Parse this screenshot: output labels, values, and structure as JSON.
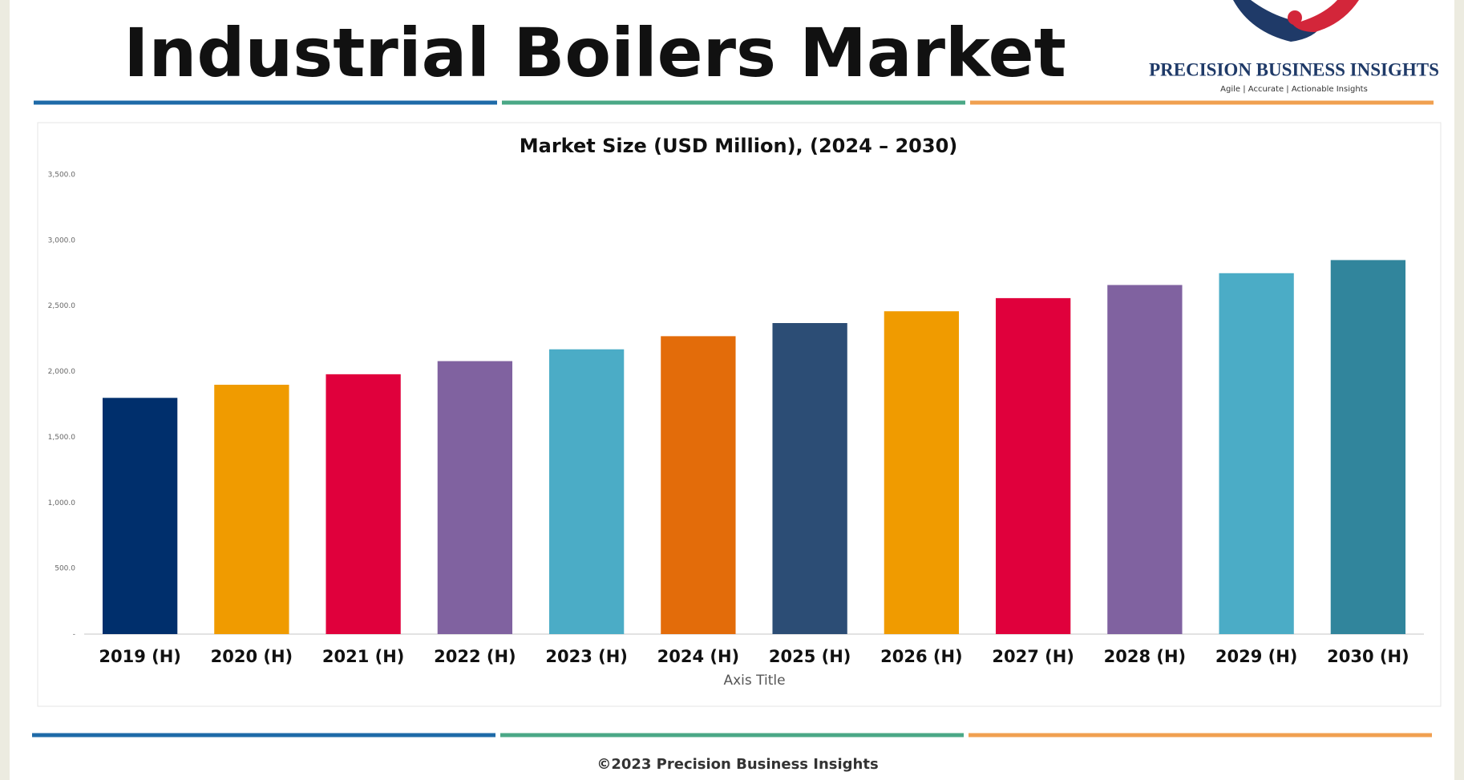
{
  "header": {
    "title": "Industrial Boilers Market",
    "brand": "PRECISION BUSINESS INSIGHTS",
    "tagline": "Agile | Accurate | Actionable Insights"
  },
  "chart_data": {
    "type": "bar",
    "title": "Market Size (USD Million), (2024 – 2030)",
    "x_label": "Axis Title",
    "categories": [
      "2019 (H)",
      "2020 (H)",
      "2021 (H)",
      "2022 (H)",
      "2023 (H)",
      "2024 (H)",
      "2025 (H)",
      "2026 (H)",
      "2027 (H)",
      "2028 (H)",
      "2029 (H)",
      "2030 (H)"
    ],
    "values": [
      1800,
      1900,
      1980,
      2080,
      2170,
      2270,
      2370,
      2460,
      2560,
      2660,
      2750,
      2850
    ],
    "colors": [
      "#002f6c",
      "#f09b00",
      "#e0003c",
      "#8062a0",
      "#4bacc6",
      "#e36c0a",
      "#2c4d75",
      "#f09b00",
      "#e0003c",
      "#8062a0",
      "#4bacc6",
      "#31859c"
    ],
    "ylim": [
      0,
      3500
    ],
    "yticks": [
      {
        "value": 0,
        "label": "-"
      },
      {
        "value": 500,
        "label": "500.0"
      },
      {
        "value": 1000,
        "label": "1,000.0"
      },
      {
        "value": 1500,
        "label": "1,500.0"
      },
      {
        "value": 2000,
        "label": "2,000.0"
      },
      {
        "value": 2500,
        "label": "2,500.0"
      },
      {
        "value": 3000,
        "label": "3,000.0"
      },
      {
        "value": 3500,
        "label": "3,500.0"
      }
    ],
    "grid": false
  },
  "footer": "©2023 Precision Business Insights"
}
